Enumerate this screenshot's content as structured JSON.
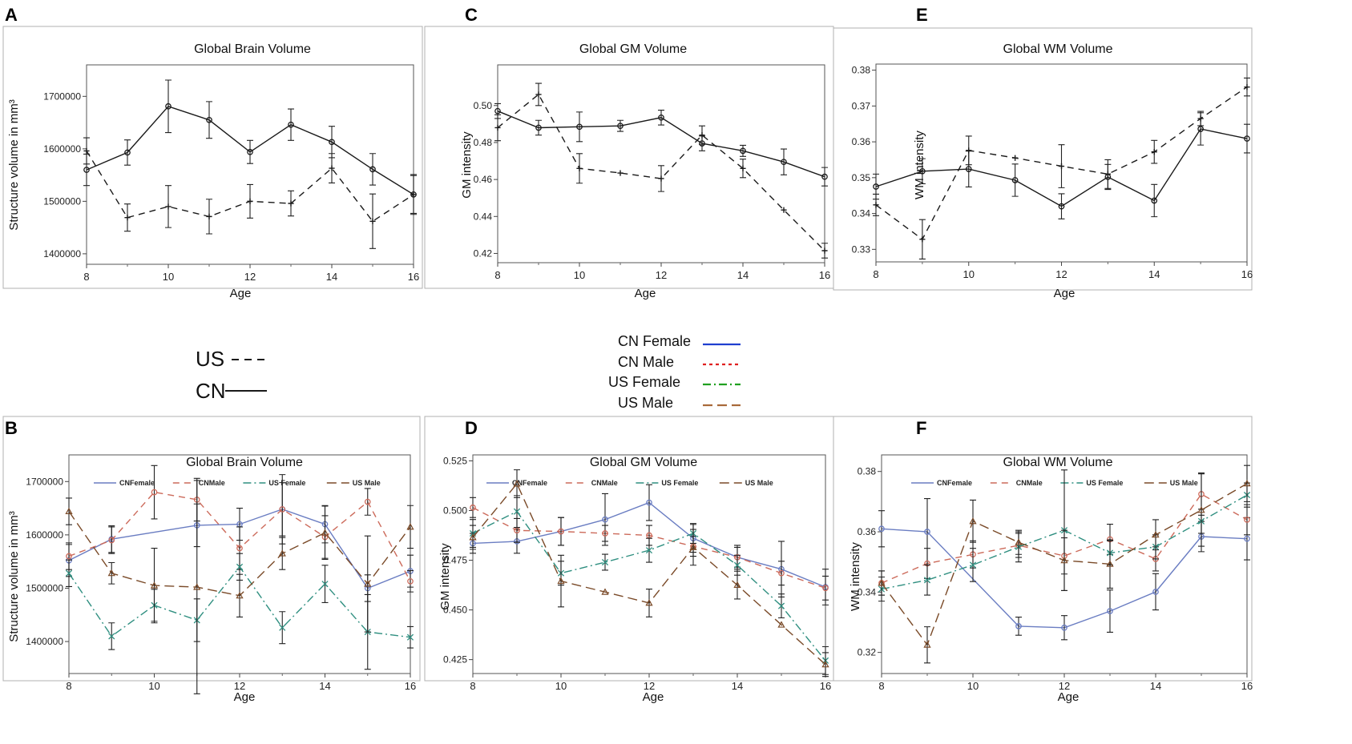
{
  "panel_letters": {
    "A": "A",
    "B": "B",
    "C": "C",
    "D": "D",
    "E": "E",
    "F": "F"
  },
  "legend_simple": {
    "us": "US",
    "cn": "CN"
  },
  "legend_color": {
    "cn_female": "CN Female",
    "cn_male": "CN Male",
    "us_female": "US Female",
    "us_male": "US Male"
  },
  "colors": {
    "black": "#1a1a1a",
    "cn_female": "#6a7dc2",
    "cn_male": "#cc6a5a",
    "us_female": "#2f8f80",
    "us_male": "#7a4a28",
    "legend_blue": "#1f3fd0",
    "legend_red": "#e02020",
    "legend_green": "#20a020",
    "legend_brown": "#a86a3a"
  },
  "chart_data": [
    {
      "id": "A",
      "type": "line",
      "title": "Global Brain Volume",
      "xlabel": "Age",
      "ylabel": "Structure volume in mm³",
      "xlim": [
        8,
        16
      ],
      "xticks": [
        8,
        10,
        12,
        14,
        16
      ],
      "ylim": [
        1380000,
        1760000
      ],
      "yticks": [
        1400000,
        1500000,
        1600000,
        1700000
      ],
      "ytick_labels": [
        "1400000",
        "1500000",
        "1600000",
        "1700000"
      ],
      "x": [
        8,
        9,
        10,
        11,
        12,
        13,
        14,
        15,
        16
      ],
      "series": [
        {
          "name": "CN",
          "style": "solid",
          "marker": "circle",
          "values": [
            1560000,
            1593000,
            1681000,
            1655000,
            1594000,
            1646000,
            1613000,
            1561000,
            1513000
          ],
          "err": [
            30000,
            24000,
            50000,
            35000,
            22000,
            30000,
            30000,
            30000,
            36000
          ]
        },
        {
          "name": "US",
          "style": "dashed",
          "marker": "plus",
          "values": [
            1596000,
            1469000,
            1490000,
            1471000,
            1500000,
            1496000,
            1563000,
            1462000,
            1513000
          ],
          "err": [
            25000,
            26000,
            40000,
            33000,
            32000,
            24000,
            28000,
            52000,
            38000
          ]
        }
      ]
    },
    {
      "id": "C",
      "type": "line",
      "title": "Global GM Volume",
      "xlabel": "Age",
      "ylabel": "GM intensity",
      "xlim": [
        8,
        16
      ],
      "xticks": [
        8,
        10,
        12,
        14,
        16
      ],
      "ylim": [
        0.415,
        0.522
      ],
      "yticks": [
        0.42,
        0.44,
        0.46,
        0.48,
        0.5
      ],
      "ytick_labels": [
        "0.42",
        "0.44",
        "0.46",
        "0.48",
        "0.50"
      ],
      "x": [
        8,
        9,
        10,
        11,
        12,
        13,
        14,
        15,
        16
      ],
      "series": [
        {
          "name": "CN",
          "style": "solid",
          "marker": "circle",
          "values": [
            0.497,
            0.488,
            0.4885,
            0.489,
            0.4935,
            0.4795,
            0.4755,
            0.4695,
            0.4615
          ],
          "err": [
            0.004,
            0.004,
            0.008,
            0.003,
            0.004,
            0.004,
            0.003,
            0.007,
            0.005
          ]
        },
        {
          "name": "US",
          "style": "dashed",
          "marker": "plus",
          "values": [
            0.488,
            0.506,
            0.466,
            0.4635,
            0.4605,
            0.484,
            0.466,
            0.4435,
            0.4215
          ],
          "err": [
            0.007,
            0.006,
            0.008,
            0.0,
            0.007,
            0.005,
            0.005,
            0.0,
            0.004
          ]
        }
      ]
    },
    {
      "id": "E",
      "type": "line",
      "title": "Global WM Volume",
      "xlabel": "Age",
      "ylabel": "WM intensity",
      "xlim": [
        8,
        16
      ],
      "xticks": [
        8,
        10,
        12,
        14,
        16
      ],
      "ylim": [
        0.3265,
        0.3817
      ],
      "yticks": [
        0.33,
        0.34,
        0.35,
        0.36,
        0.37,
        0.38
      ],
      "ytick_labels": [
        "0.33",
        "0.34",
        "0.35",
        "0.36",
        "0.37",
        "0.38"
      ],
      "x": [
        8,
        9,
        10,
        11,
        12,
        13,
        14,
        15,
        16
      ],
      "series": [
        {
          "name": "CN",
          "style": "solid",
          "marker": "circle",
          "values": [
            0.3475,
            0.3518,
            0.3524,
            0.3493,
            0.342,
            0.3502,
            0.3436,
            0.3636,
            0.3609
          ],
          "err": [
            0.0035,
            0.0035,
            0.005,
            0.0045,
            0.0035,
            0.0035,
            0.0045,
            0.0045,
            0.004
          ]
        },
        {
          "name": "US",
          "style": "dashed",
          "marker": "plus",
          "values": [
            0.3424,
            0.3328,
            0.3576,
            0.3555,
            0.3532,
            0.351,
            0.3572,
            0.3665,
            0.3753
          ],
          "err": [
            0.003,
            0.0055,
            0.004,
            0.0,
            0.006,
            0.004,
            0.0032,
            0.002,
            0.0025
          ]
        }
      ]
    },
    {
      "id": "B",
      "type": "line",
      "title": "Global Brain Volume",
      "xlabel": "Age",
      "ylabel": "Structure volume in mm³",
      "xlim": [
        8,
        16
      ],
      "xticks": [
        8,
        10,
        12,
        14,
        16
      ],
      "ylim": [
        1340000,
        1750000
      ],
      "yticks": [
        1400000,
        1500000,
        1600000,
        1700000
      ],
      "ytick_labels": [
        "1400000",
        "1500000",
        "1600000",
        "1700000"
      ],
      "legend": [
        "CNFemale",
        "CNMale",
        "US Female",
        "US Male"
      ],
      "x": [
        8,
        9,
        10,
        11,
        12,
        13,
        14,
        15,
        16
      ],
      "series": [
        {
          "name": "CNFemale",
          "style": "solid",
          "color_key": "cn_female",
          "marker": "circle",
          "values": [
            1552000,
            1592000,
            null,
            1618000,
            1620000,
            1648000,
            1620000,
            1500000,
            1532000
          ],
          "err": [
            30000,
            25000,
            null,
            40000,
            30000,
            50000,
            35000,
            25000,
            30000
          ]
        },
        {
          "name": "CNMale",
          "style": "dashed",
          "color_key": "cn_male",
          "marker": "circle",
          "values": [
            1560000,
            1590000,
            1680000,
            1666000,
            1575000,
            1648000,
            1596000,
            1662000,
            1513000
          ],
          "err": [
            25000,
            25000,
            50000,
            40000,
            40000,
            65000,
            40000,
            25000,
            20000
          ]
        },
        {
          "name": "US Female",
          "style": "dashdot",
          "color_key": "us_female",
          "marker": "x",
          "values": [
            1528000,
            1410000,
            1468000,
            1440000,
            1540000,
            1426000,
            1508000,
            1418000,
            1408000
          ],
          "err": [
            25000,
            25000,
            30000,
            40000,
            25000,
            30000,
            35000,
            70000,
            20000
          ]
        },
        {
          "name": "US Male",
          "style": "longdash",
          "color_key": "us_male",
          "marker": "triangle",
          "values": [
            1644000,
            1528000,
            1505000,
            1502000,
            1486000,
            1565000,
            1604000,
            1508000,
            1615000
          ],
          "err": [
            25000,
            20000,
            70000,
            200000,
            40000,
            30000,
            50000,
            90000,
            40000
          ]
        }
      ]
    },
    {
      "id": "D",
      "type": "line",
      "title": "Global GM Volume",
      "xlabel": "Age",
      "ylabel": "GM intensity",
      "xlim": [
        8,
        16
      ],
      "xticks": [
        8,
        10,
        12,
        14,
        16
      ],
      "ylim": [
        0.418,
        0.528
      ],
      "yticks": [
        0.425,
        0.45,
        0.475,
        0.5,
        0.525
      ],
      "ytick_labels": [
        "0.425",
        "0.450",
        "0.475",
        "0.500",
        "0.525"
      ],
      "legend": [
        "CNFemale",
        "CNMale",
        "US Female",
        "US Male"
      ],
      "x": [
        8,
        9,
        10,
        11,
        12,
        13,
        14,
        15,
        16
      ],
      "series": [
        {
          "name": "CNFemale",
          "style": "solid",
          "color_key": "cn_female",
          "marker": "circle",
          "values": [
            0.4835,
            0.4845,
            0.4895,
            0.4955,
            0.504,
            0.486,
            0.4765,
            0.4705,
            0.4615
          ],
          "err": [
            0.005,
            0.006,
            0.007,
            0.013,
            0.009,
            0.007,
            0.005,
            0.014,
            0.009
          ]
        },
        {
          "name": "CNMale",
          "style": "dashed",
          "color_key": "cn_male",
          "marker": "circle",
          "values": [
            0.5015,
            0.49,
            0.4895,
            0.4885,
            0.4875,
            0.482,
            0.4765,
            0.4685,
            0.461
          ],
          "err": [
            0.005,
            0.006,
            0.007,
            0.004,
            0.005,
            0.005,
            0.006,
            0.006,
            0.006
          ]
        },
        {
          "name": "US Female",
          "style": "dashdot",
          "color_key": "us_female",
          "marker": "x",
          "values": [
            0.4885,
            0.4995,
            0.4685,
            0.474,
            0.48,
            0.4885,
            0.4725,
            0.452,
            0.4245
          ],
          "err": [
            0.007,
            0.008,
            0.006,
            0.004,
            0.006,
            0.005,
            0.005,
            0.006,
            0.007
          ]
        },
        {
          "name": "US Male",
          "style": "longdash",
          "color_key": "us_male",
          "marker": "triangle",
          "values": [
            0.4865,
            0.5135,
            0.4645,
            0.459,
            0.4535,
            0.4815,
            0.4625,
            0.4425,
            0.4225
          ],
          "err": [
            0.006,
            0.007,
            0.013,
            0.0,
            0.007,
            0.009,
            0.007,
            0.0,
            0.006
          ]
        }
      ]
    },
    {
      "id": "F",
      "type": "line",
      "title": "Global WM Volume",
      "xlabel": "Age",
      "ylabel": "WM intensity",
      "xlim": [
        8,
        16
      ],
      "xticks": [
        8,
        10,
        12,
        14,
        16
      ],
      "ylim": [
        0.313,
        0.3855
      ],
      "yticks": [
        0.32,
        0.34,
        0.36,
        0.38
      ],
      "ytick_labels": [
        "0.32",
        "0.34",
        "0.36",
        "0.38"
      ],
      "legend": [
        "CNFemale",
        "CNMale",
        "US Female",
        "US Male"
      ],
      "x": [
        8,
        9,
        10,
        11,
        12,
        13,
        14,
        15,
        16
      ],
      "series": [
        {
          "name": "CNFemale",
          "style": "solid",
          "color_key": "cn_female",
          "marker": "circle",
          "values": [
            0.361,
            0.36,
            null,
            0.3287,
            0.3282,
            0.3337,
            0.3401,
            0.3584,
            0.3577
          ],
          "err": [
            0.006,
            0.011,
            null,
            0.003,
            0.004,
            0.007,
            0.006,
            0.005,
            0.007
          ]
        },
        {
          "name": "CNMale",
          "style": "dashed",
          "color_key": "cn_male",
          "marker": "circle",
          "values": [
            0.343,
            0.3495,
            0.3525,
            0.3555,
            0.352,
            0.3575,
            0.351,
            0.3725,
            0.364
          ],
          "err": [
            0.004,
            0.005,
            0.0045,
            0.004,
            0.006,
            0.005,
            0.004,
            0.007,
            0.005
          ]
        },
        {
          "name": "US Female",
          "style": "dashdot",
          "color_key": "us_female",
          "marker": "x",
          "values": [
            0.341,
            0.344,
            0.349,
            0.355,
            0.3605,
            0.353,
            0.355,
            0.3635,
            0.3722
          ],
          "err": [
            0.004,
            0.005,
            0.0055,
            0.005,
            0.02,
            0.004,
            0.004,
            0.004,
            0.004
          ]
        },
        {
          "name": "US Male",
          "style": "longdash",
          "color_key": "us_male",
          "marker": "triangle",
          "values": [
            0.343,
            0.3225,
            0.3635,
            0.3565,
            0.3505,
            0.3493,
            0.359,
            0.3672,
            0.376
          ],
          "err": [
            0.004,
            0.006,
            0.007,
            0.004,
            0.01,
            0.008,
            0.005,
            0.012,
            0.006
          ]
        }
      ]
    }
  ]
}
